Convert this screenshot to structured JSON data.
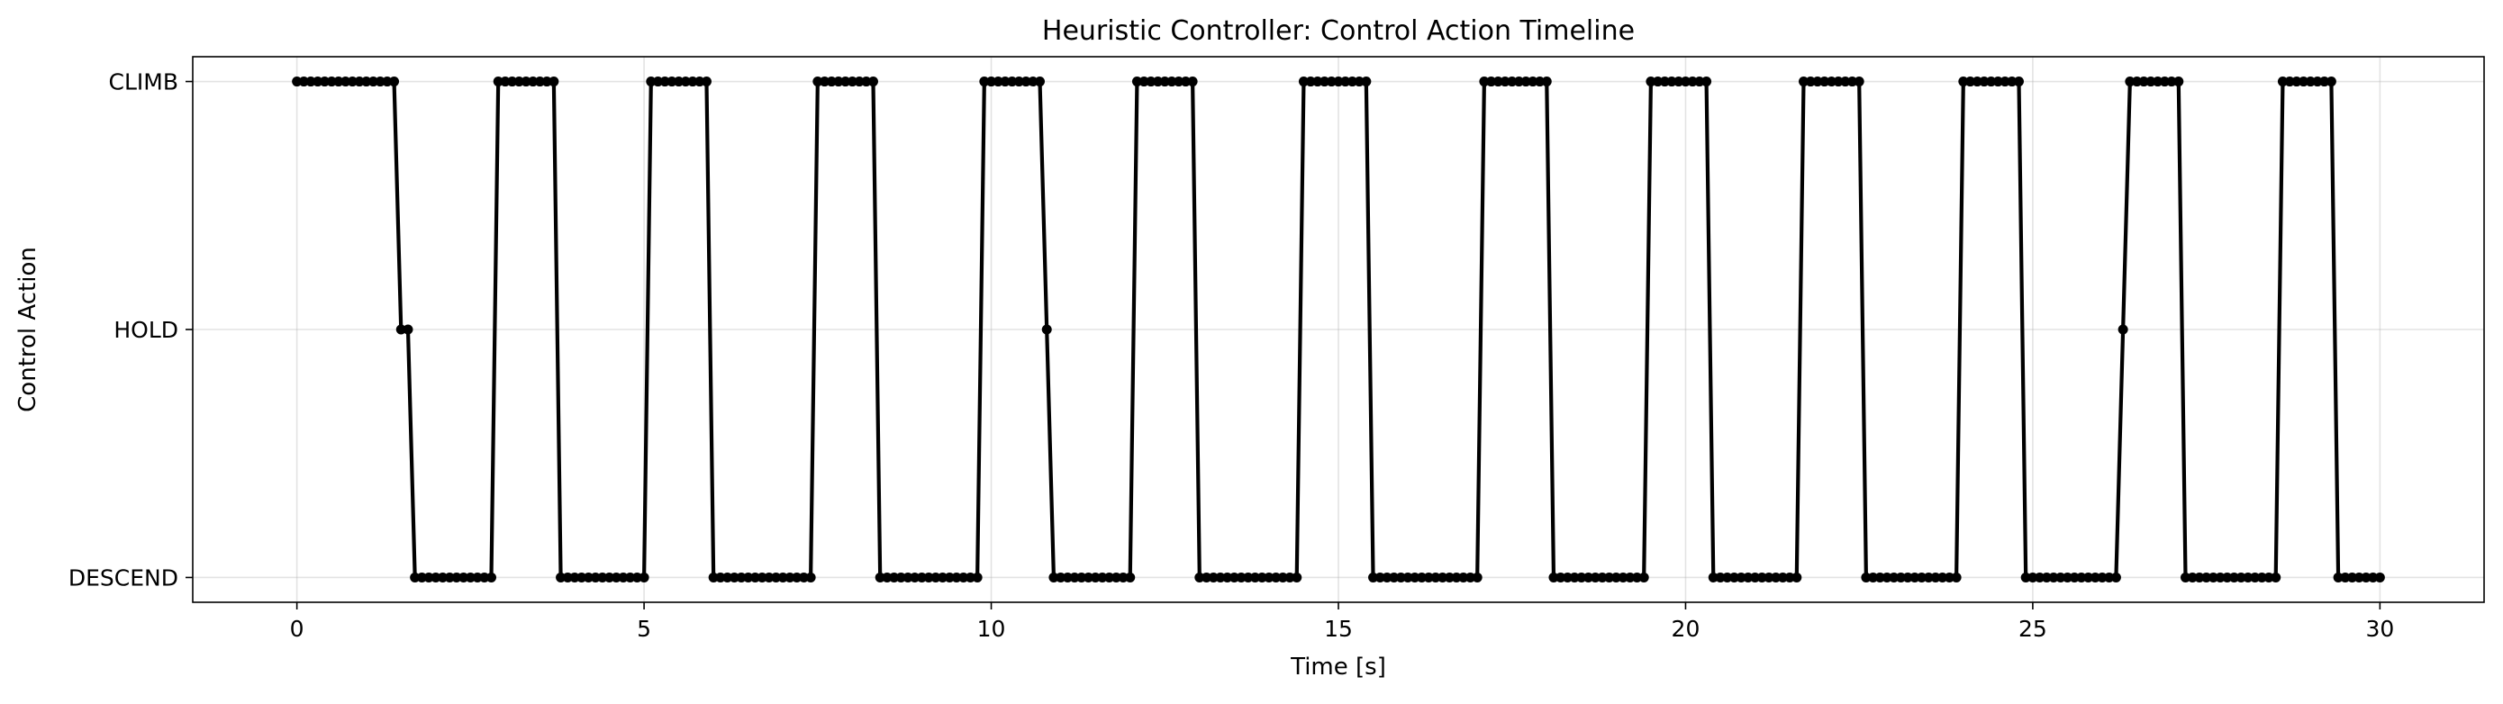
{
  "chart_data": {
    "type": "line",
    "title": "Heuristic Controller: Control Action Timeline",
    "xlabel": "Time [s]",
    "ylabel": "Control Action",
    "xlim": [
      -1.5,
      31.5
    ],
    "ylim": [
      -0.1,
      2.1
    ],
    "x_ticks": [
      0,
      5,
      10,
      15,
      20,
      25,
      30
    ],
    "y_categories": [
      "DESCEND",
      "HOLD",
      "CLIMB"
    ],
    "grid": true,
    "legend": "none",
    "marker": "circle",
    "color": "#000000",
    "sample_interval": 0.1,
    "segments": [
      {
        "start": 0.0,
        "end": 1.4,
        "action": "CLIMB"
      },
      {
        "start": 1.5,
        "end": 1.6,
        "action": "HOLD"
      },
      {
        "start": 1.7,
        "end": 2.8,
        "action": "DESCEND"
      },
      {
        "start": 2.9,
        "end": 3.7,
        "action": "CLIMB"
      },
      {
        "start": 3.8,
        "end": 5.0,
        "action": "DESCEND"
      },
      {
        "start": 5.1,
        "end": 5.9,
        "action": "CLIMB"
      },
      {
        "start": 6.0,
        "end": 7.4,
        "action": "DESCEND"
      },
      {
        "start": 7.5,
        "end": 8.3,
        "action": "CLIMB"
      },
      {
        "start": 8.4,
        "end": 9.8,
        "action": "DESCEND"
      },
      {
        "start": 9.9,
        "end": 10.7,
        "action": "CLIMB"
      },
      {
        "start": 10.8,
        "end": 10.8,
        "action": "HOLD"
      },
      {
        "start": 10.9,
        "end": 12.0,
        "action": "DESCEND"
      },
      {
        "start": 12.1,
        "end": 12.9,
        "action": "CLIMB"
      },
      {
        "start": 13.0,
        "end": 14.4,
        "action": "DESCEND"
      },
      {
        "start": 14.5,
        "end": 15.4,
        "action": "CLIMB"
      },
      {
        "start": 15.5,
        "end": 17.0,
        "action": "DESCEND"
      },
      {
        "start": 17.1,
        "end": 18.0,
        "action": "CLIMB"
      },
      {
        "start": 18.1,
        "end": 19.4,
        "action": "DESCEND"
      },
      {
        "start": 19.5,
        "end": 20.3,
        "action": "CLIMB"
      },
      {
        "start": 20.4,
        "end": 21.6,
        "action": "DESCEND"
      },
      {
        "start": 21.7,
        "end": 22.5,
        "action": "CLIMB"
      },
      {
        "start": 22.6,
        "end": 23.9,
        "action": "DESCEND"
      },
      {
        "start": 24.0,
        "end": 24.8,
        "action": "CLIMB"
      },
      {
        "start": 24.9,
        "end": 26.2,
        "action": "DESCEND"
      },
      {
        "start": 26.3,
        "end": 26.3,
        "action": "HOLD"
      },
      {
        "start": 26.4,
        "end": 27.1,
        "action": "CLIMB"
      },
      {
        "start": 27.2,
        "end": 28.5,
        "action": "DESCEND"
      },
      {
        "start": 28.6,
        "end": 29.3,
        "action": "CLIMB"
      },
      {
        "start": 29.4,
        "end": 30.0,
        "action": "DESCEND"
      }
    ]
  }
}
